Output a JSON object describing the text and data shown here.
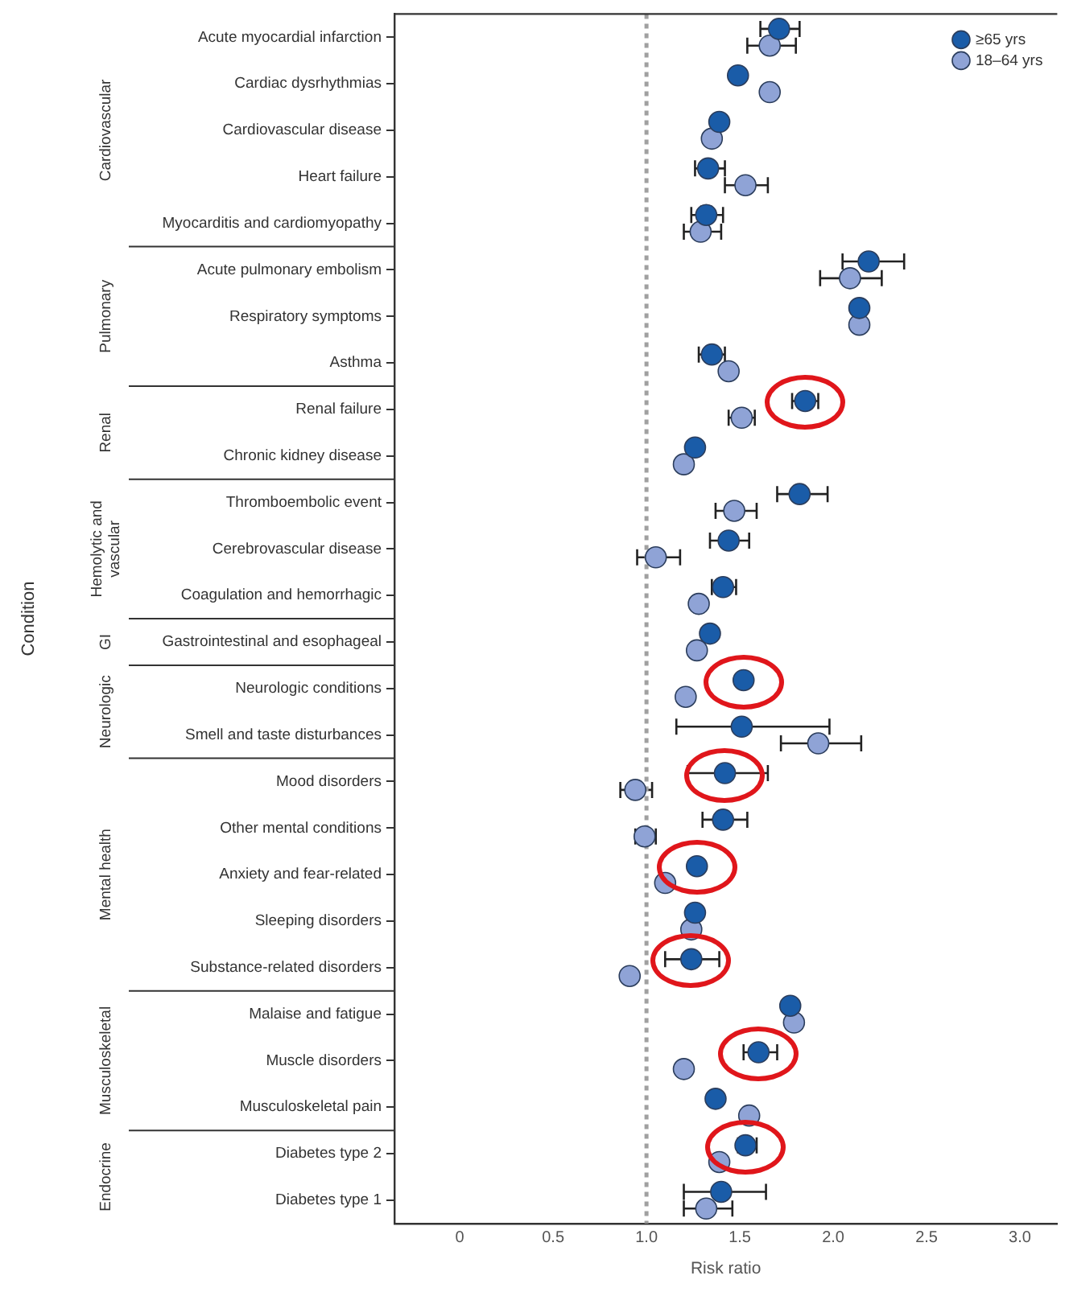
{
  "chart_data": {
    "type": "scatter",
    "orientation": "horizontal",
    "xlabel": "Risk ratio",
    "categories": [
      "Acute myocardial infarction",
      "Cardiac dysrhythmias",
      "Cardiovascular disease",
      "Heart failure",
      "Myocarditis and cardiomyopathy",
      "Acute pulmonary embolism",
      "Respiratory symptoms",
      "Asthma",
      "Renal failure",
      "Chronic kidney disease",
      "Thromboembolic event",
      "Cerebrovascular disease",
      "Coagulation and hemorrhagic",
      "Gastrointestinal and esophageal",
      "Neurologic conditions",
      "Smell and taste disturbances",
      "Mood disorders",
      "Other mental conditions",
      "Anxiety and fear-related",
      "Sleeping disorders",
      "Substance-related disorders",
      "Malaise and fatigue",
      "Muscle disorders",
      "Musculoskeletal pain",
      "Diabetes type 2",
      "Diabetes type 1"
    ],
    "series": [
      {
        "name": "≥65 yrs",
        "color": "#1a5ca8",
        "values": [
          1.71,
          1.49,
          1.39,
          1.33,
          1.32,
          2.19,
          2.14,
          1.35,
          1.85,
          1.26,
          1.82,
          1.44,
          1.41,
          1.34,
          1.52,
          1.51,
          1.42,
          1.41,
          1.27,
          1.26,
          1.24,
          1.77,
          1.6,
          1.37,
          1.53,
          1.4
        ],
        "errors": [
          [
            1.61,
            1.82
          ],
          null,
          null,
          [
            1.26,
            1.42
          ],
          [
            1.24,
            1.41
          ],
          [
            2.05,
            2.38
          ],
          null,
          [
            1.28,
            1.42
          ],
          [
            1.78,
            1.92
          ],
          null,
          [
            1.7,
            1.97
          ],
          [
            1.34,
            1.55
          ],
          [
            1.35,
            1.48
          ],
          null,
          null,
          [
            1.16,
            1.98
          ],
          [
            1.22,
            1.65
          ],
          [
            1.3,
            1.54
          ],
          null,
          null,
          [
            1.1,
            1.39
          ],
          null,
          [
            1.52,
            1.7
          ],
          null,
          [
            1.49,
            1.59
          ],
          [
            1.2,
            1.64
          ]
        ]
      },
      {
        "name": "18–64 yrs",
        "color": "#8fa3d6",
        "values": [
          1.66,
          1.66,
          1.35,
          1.53,
          1.29,
          2.09,
          2.14,
          1.44,
          1.51,
          1.2,
          1.47,
          1.05,
          1.28,
          1.27,
          1.21,
          1.92,
          0.94,
          0.99,
          1.1,
          1.24,
          0.91,
          1.79,
          1.2,
          1.55,
          1.39,
          1.32
        ],
        "errors": [
          [
            1.54,
            1.8
          ],
          null,
          null,
          [
            1.42,
            1.65
          ],
          [
            1.2,
            1.4
          ],
          [
            1.93,
            2.26
          ],
          null,
          null,
          [
            1.44,
            1.58
          ],
          null,
          [
            1.37,
            1.59
          ],
          [
            0.95,
            1.18
          ],
          null,
          null,
          null,
          [
            1.72,
            2.15
          ],
          [
            0.86,
            1.03
          ],
          [
            0.94,
            1.05
          ],
          null,
          null,
          null,
          null,
          null,
          null,
          null,
          [
            1.2,
            1.46
          ]
        ]
      }
    ],
    "xlim": [
      -0.35,
      3.2
    ],
    "xticks": [
      0,
      0.5,
      {
        "value": 1,
        "label": "1.0"
      },
      1.5,
      {
        "value": 2,
        "label": "2.0"
      },
      2.5,
      {
        "value": 3,
        "label": "3.0"
      }
    ],
    "ref_lines": [
      {
        "axis": "x",
        "value": 1,
        "color": "#a0a0a0",
        "line_style": "dotted"
      }
    ],
    "annotations": [
      "Cardiovascular",
      "Pulmonary",
      "Renal",
      "Hemolytic and vascular",
      "GI",
      "Neurologic",
      "Mental health",
      "Musculoskeletal",
      "Endocrine",
      "Condition"
    ],
    "legend": "top right",
    "marker": "circle",
    "grid": false
  }
}
